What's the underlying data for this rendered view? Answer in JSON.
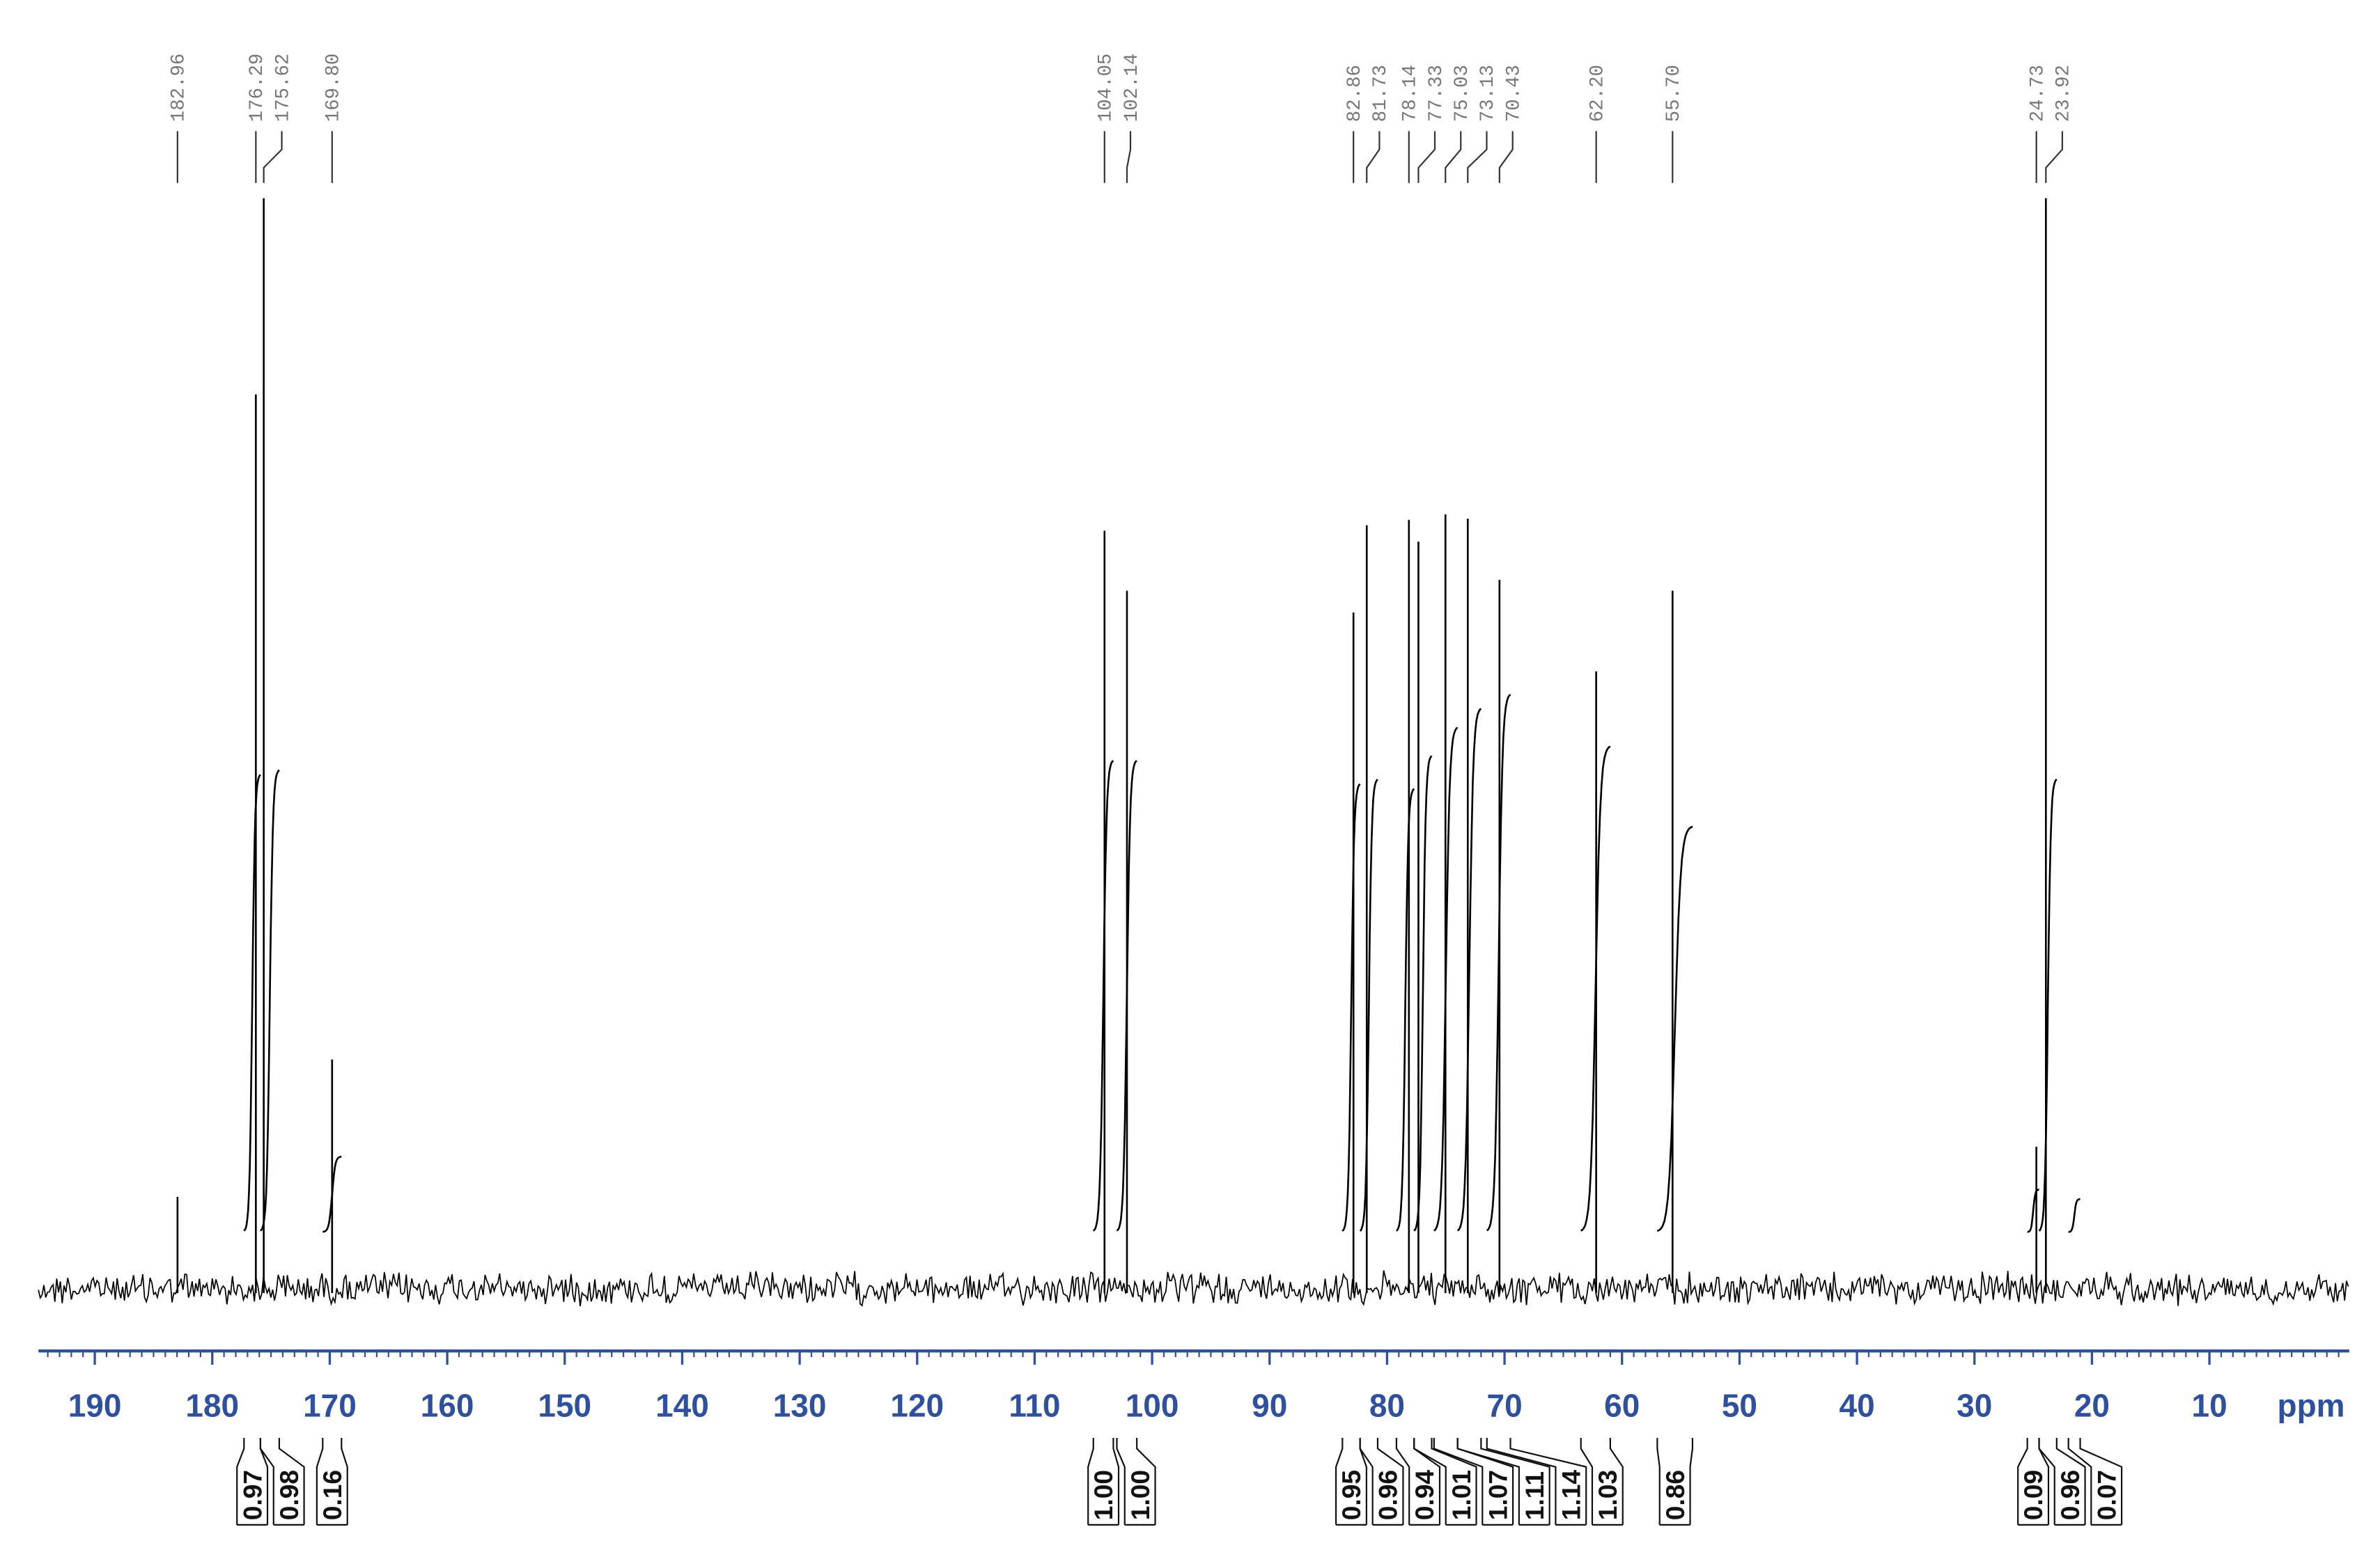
{
  "chart_data": {
    "type": "nmr",
    "xlabel": "ppm",
    "xlim": [
      194.8,
      -1.9
    ],
    "xticks": [
      190,
      180,
      170,
      160,
      150,
      140,
      130,
      120,
      110,
      100,
      90,
      80,
      70,
      60,
      50,
      40,
      30,
      20,
      10
    ],
    "xminor": 1,
    "ylim": [
      0,
      100
    ],
    "axis_color": "#2f4f9f",
    "color": "#000000",
    "peaks": {
      "x": [
        182.96,
        176.29,
        175.62,
        169.8,
        104.05,
        102.14,
        82.86,
        81.73,
        78.14,
        77.33,
        75.03,
        73.13,
        70.43,
        62.2,
        55.7,
        24.73,
        23.92
      ],
      "values": [
        8.4,
        82,
        100,
        21,
        69.5,
        64,
        62,
        70,
        70.5,
        68.5,
        71,
        70.6,
        65,
        56.6,
        64,
        13,
        100
      ],
      "value_labels": [
        "182.96",
        "176.29",
        "175.62",
        "169.80",
        "104.05",
        "102.14",
        "82.86",
        "81.73",
        "78.14",
        "77.33",
        "75.03",
        "73.13",
        "70.43",
        "62.20",
        "55.70",
        "24.73",
        "23.92"
      ]
    },
    "integrals": {
      "from": [
        177.3,
        175.9,
        170.6,
        105.0,
        103.0,
        83.8,
        82.3,
        79.2,
        77.7,
        76.0,
        74.0,
        71.5,
        63.5,
        57.0,
        25.5,
        24.5,
        22.0
      ],
      "to": [
        175.9,
        174.3,
        169.0,
        103.3,
        101.3,
        82.3,
        80.8,
        77.7,
        76.2,
        74.0,
        72.0,
        69.5,
        61.0,
        54.0,
        24.5,
        23.0,
        21.0
      ],
      "values": [
        0.97,
        0.98,
        0.16,
        1.0,
        1.0,
        0.95,
        0.96,
        0.94,
        1.01,
        1.07,
        1.11,
        1.14,
        1.03,
        0.86,
        0.09,
        0.96,
        0.07
      ],
      "value_labels": [
        "0.97",
        "0.98",
        "0.16",
        "1.00",
        "1.00",
        "0.95",
        "0.96",
        "0.94",
        "1.01",
        "1.07",
        "1.11",
        "1.14",
        "1.03",
        "0.86",
        "0.09",
        "0.96",
        "0.07"
      ]
    }
  }
}
